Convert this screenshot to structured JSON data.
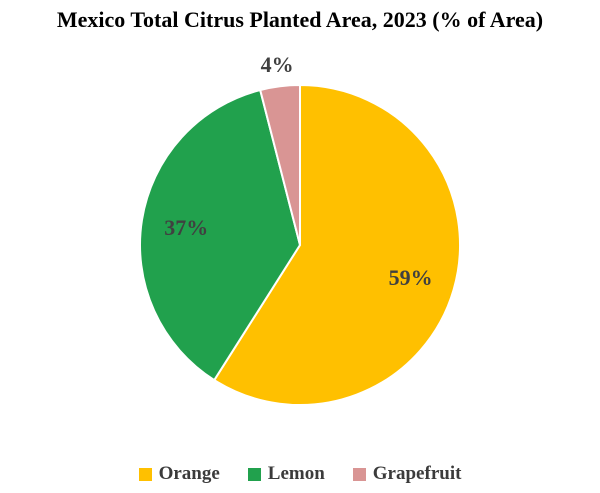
{
  "chart_data": {
    "type": "pie",
    "title": "Mexico Total Citrus Planted Area, 2023 (% of Area)",
    "categories": [
      "Orange",
      "Lemon",
      "Grapefruit"
    ],
    "values": [
      59,
      37,
      4
    ],
    "labels": [
      "59%",
      "37%",
      "4%"
    ],
    "colors": [
      "#FFC000",
      "#21A14D",
      "#D99594"
    ],
    "label_color": "#404040",
    "legend_text_color": "#3b3b3b",
    "title_color": "#000000",
    "slice_border_color": "#ffffff",
    "start_angle_deg": 0,
    "direction": "clockwise",
    "legend_position": "bottom"
  }
}
